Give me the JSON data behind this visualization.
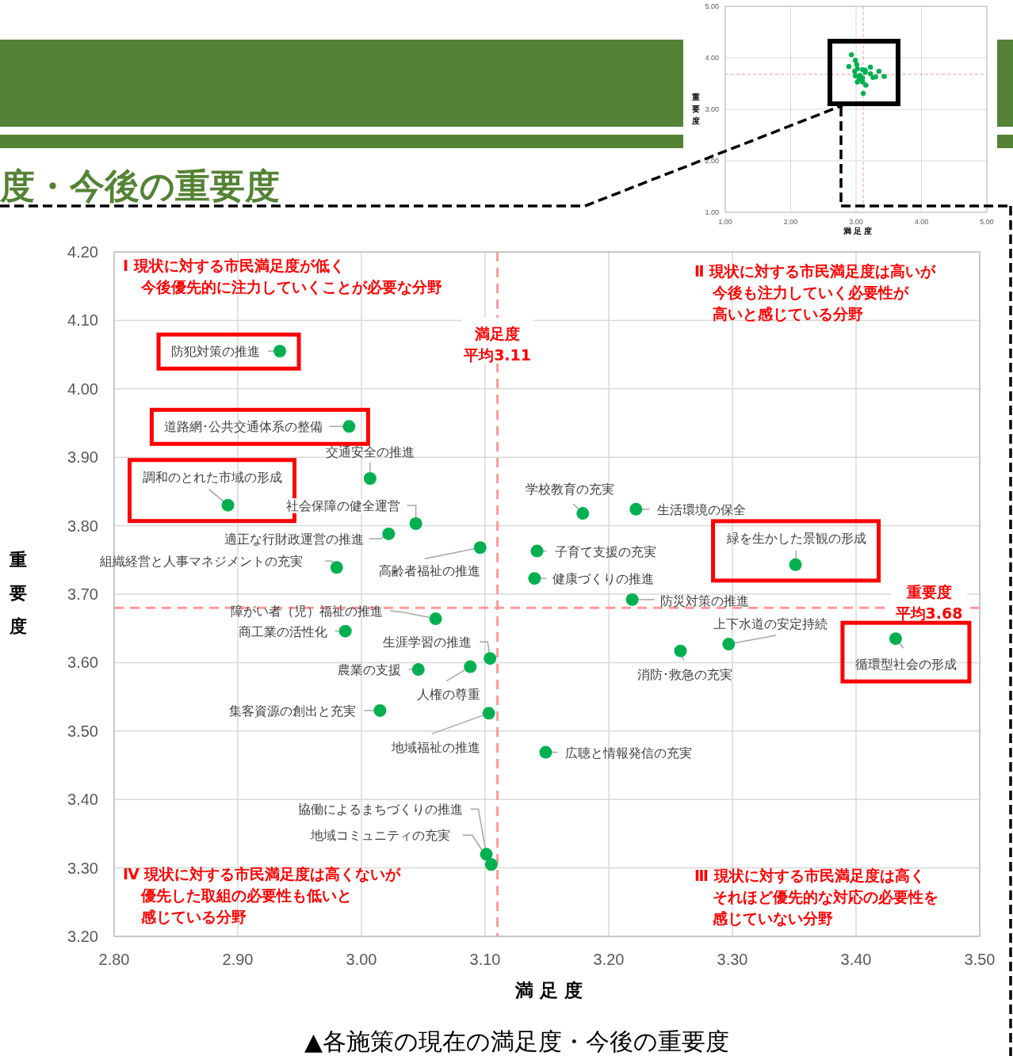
{
  "chart_data": [
    {
      "type": "scatter",
      "title": "度・今後の重要度",
      "xlabel": "満 足 度",
      "ylabel": "重要度",
      "xlim": [
        2.8,
        3.5
      ],
      "xticks": [
        {
          "value": 2.8,
          "label": "2.80"
        },
        {
          "value": 2.9,
          "label": "2.90"
        },
        {
          "value": 3.0,
          "label": "3.00"
        },
        {
          "value": 3.1,
          "label": "3.10"
        },
        {
          "value": 3.2,
          "label": "3.20"
        },
        {
          "value": 3.3,
          "label": "3.30"
        },
        {
          "value": 3.4,
          "label": "3.40"
        },
        {
          "value": 3.5,
          "label": "3.50"
        }
      ],
      "ylim": [
        3.2,
        4.2
      ],
      "yticks": [
        {
          "value": 3.2,
          "label": "3.20"
        },
        {
          "value": 3.3,
          "label": "3.30"
        },
        {
          "value": 3.4,
          "label": "3.40"
        },
        {
          "value": 3.5,
          "label": "3.50"
        },
        {
          "value": 3.6,
          "label": "3.60"
        },
        {
          "value": 3.7,
          "label": "3.70"
        },
        {
          "value": 3.8,
          "label": "3.80"
        },
        {
          "value": 3.9,
          "label": "3.90"
        },
        {
          "value": 4.0,
          "label": "4.00"
        },
        {
          "value": 4.1,
          "label": "4.10"
        },
        {
          "value": 4.2,
          "label": "4.20"
        }
      ],
      "grid": true,
      "marker": "circle",
      "color": "#00b050",
      "x": [
        2.934,
        2.99,
        3.007,
        2.892,
        3.044,
        3.022,
        3.096,
        2.98,
        3.179,
        3.222,
        3.142,
        3.14,
        3.351,
        3.219,
        3.06,
        2.987,
        3.104,
        3.046,
        3.088,
        3.297,
        3.258,
        3.432,
        3.015,
        3.103,
        3.149,
        3.101,
        3.105
      ],
      "values": [
        4.055,
        3.945,
        3.869,
        3.83,
        3.803,
        3.788,
        3.768,
        3.739,
        3.818,
        3.824,
        3.763,
        3.723,
        3.743,
        3.692,
        3.664,
        3.646,
        3.606,
        3.59,
        3.594,
        3.627,
        3.617,
        3.635,
        3.53,
        3.526,
        3.469,
        3.32,
        3.305
      ],
      "ref_lines": [
        {
          "axis": "x",
          "value": 3.11,
          "label": "満足度平均3.11",
          "color": "#ff9999",
          "line_style": "dashed"
        },
        {
          "axis": "y",
          "value": 3.68,
          "label": "重要度平均3.68",
          "color": "#ff9999",
          "line_style": "dashed"
        }
      ],
      "annotations": [
        {
          "text": "防犯対策の推進",
          "x": 2.934,
          "y": 4.055
        },
        {
          "text": "道路網･公共交通体系の整備",
          "x": 2.99,
          "y": 3.945
        },
        {
          "text": "交通安全の推進",
          "x": 3.007,
          "y": 3.869
        },
        {
          "text": "調和のとれた市域の形成",
          "x": 2.892,
          "y": 3.83
        },
        {
          "text": "社会保障の健全運営",
          "x": 3.044,
          "y": 3.803
        },
        {
          "text": "適正な行財政運営の推進",
          "x": 3.022,
          "y": 3.788
        },
        {
          "text": "高齢者福祉の推進",
          "x": 3.096,
          "y": 3.768
        },
        {
          "text": "組織経営と人事マネジメントの充実",
          "x": 2.98,
          "y": 3.739
        },
        {
          "text": "学校教育の充実",
          "x": 3.179,
          "y": 3.818
        },
        {
          "text": "生活環境の保全",
          "x": 3.222,
          "y": 3.824
        },
        {
          "text": "子育て支援の充実",
          "x": 3.142,
          "y": 3.763
        },
        {
          "text": "健康づくりの推進",
          "x": 3.14,
          "y": 3.723
        },
        {
          "text": "緑を生かした景観の形成",
          "x": 3.351,
          "y": 3.743
        },
        {
          "text": "防災対策の推進",
          "x": 3.219,
          "y": 3.692
        },
        {
          "text": "障がい者（児）福祉の推進",
          "x": 3.06,
          "y": 3.664
        },
        {
          "text": "商工業の活性化",
          "x": 2.987,
          "y": 3.646
        },
        {
          "text": "生涯学習の推進",
          "x": 3.104,
          "y": 3.606
        },
        {
          "text": "農業の支援",
          "x": 3.046,
          "y": 3.59
        },
        {
          "text": "人権の尊重",
          "x": 3.088,
          "y": 3.594
        },
        {
          "text": "上下水道の安定持続",
          "x": 3.297,
          "y": 3.627
        },
        {
          "text": "消防･救急の充実",
          "x": 3.258,
          "y": 3.617
        },
        {
          "text": "循環型社会の形成",
          "x": 3.432,
          "y": 3.635
        },
        {
          "text": "集客資源の創出と充実",
          "x": 3.015,
          "y": 3.53
        },
        {
          "text": "地域福祉の推進",
          "x": 3.103,
          "y": 3.526
        },
        {
          "text": "広聴と情報発信の充実",
          "x": 3.149,
          "y": 3.469
        },
        {
          "text": "協働によるまちづくりの推進",
          "x": 3.101,
          "y": 3.32
        },
        {
          "text": "地域コミュニティの充実",
          "x": 3.105,
          "y": 3.305
        },
        "Ⅰ 現状に対する市民満足度が低く",
        "今後優先的に注力していくことが必要な分野",
        "Ⅱ 現状に対する市民満足度は高いが",
        "今後も注力していく必要性が",
        "高いと感じている分野",
        "Ⅳ 現状に対する市民満足度は高くないが",
        "優先した取組の必要性も低いと",
        "感じている分野",
        "Ⅲ 現状に対する市民満足度は高く",
        "それほど優先的な対応の必要性を",
        "感じていない分野",
        "▲各施策の現在の満足度・今後の重要度"
      ]
    },
    {
      "type": "scatter",
      "xlabel": "満 足 度",
      "ylabel": "重要度",
      "xlim": [
        1,
        5
      ],
      "xticks": [
        {
          "value": 1,
          "label": "1.00"
        },
        {
          "value": 2,
          "label": "2.00"
        },
        {
          "value": 3,
          "label": "3.00"
        },
        {
          "value": 4,
          "label": "4.00"
        },
        {
          "value": 5,
          "label": "5.00"
        }
      ],
      "ylim": [
        1,
        5
      ],
      "yticks": [
        {
          "value": 1,
          "label": "1.00"
        },
        {
          "value": 2,
          "label": "2.00"
        },
        {
          "value": 3,
          "label": "3.00"
        },
        {
          "value": 4,
          "label": "4.00"
        },
        {
          "value": 5,
          "label": "5.00"
        }
      ],
      "grid": true,
      "marker": "circle",
      "color": "#00b050",
      "x": [
        2.93,
        2.99,
        3.01,
        2.89,
        null,
        3.02,
        3.1,
        2.98,
        null,
        3.22,
        3.14,
        3.14,
        3.35,
        3.22,
        3.06,
        2.99,
        3.1,
        3.05,
        null,
        3.3,
        3.26,
        3.43,
        3.02,
        3.1,
        3.15,
        null,
        3.11
      ],
      "values": [
        4.06,
        3.95,
        3.87,
        3.83,
        null,
        3.79,
        3.77,
        3.74,
        null,
        3.82,
        3.76,
        3.72,
        3.74,
        3.69,
        3.66,
        3.65,
        3.61,
        3.59,
        null,
        3.63,
        3.62,
        3.64,
        3.53,
        3.53,
        3.47,
        null,
        3.31
      ],
      "ref_lines": [
        {
          "axis": "x",
          "value": 3.11,
          "color": "#ff9999",
          "line_style": "dashed"
        },
        {
          "axis": "y",
          "value": 3.68,
          "color": "#ff9999",
          "line_style": "dashed"
        }
      ]
    }
  ]
}
